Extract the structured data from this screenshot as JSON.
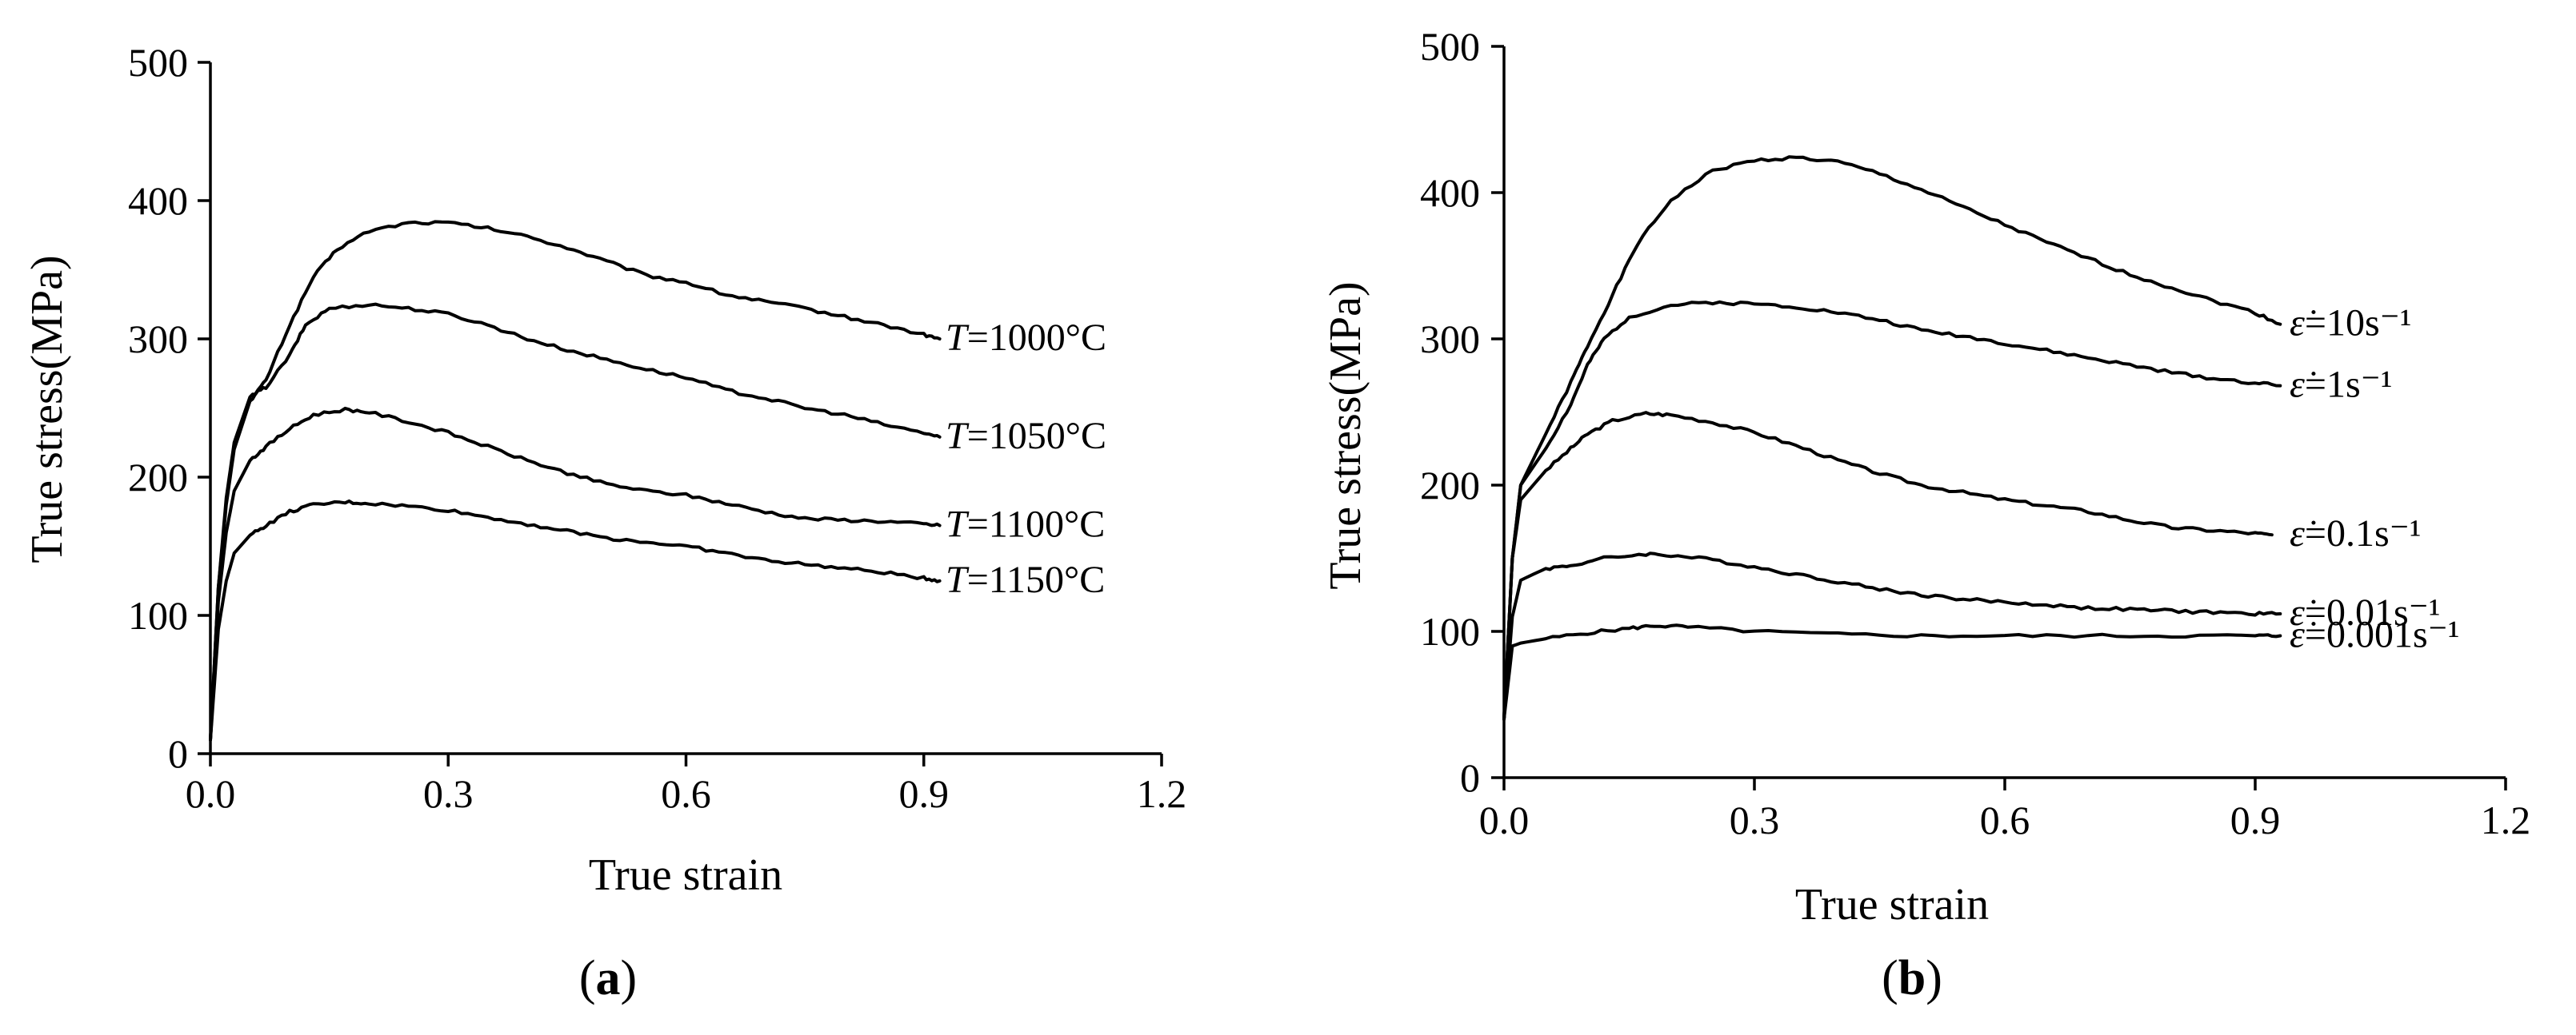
{
  "chart_data": [
    {
      "id": "a",
      "type": "line",
      "xlabel": "True strain",
      "ylabel": "True stress(MPa)",
      "xlim": [
        0,
        1.2
      ],
      "ylim": [
        0,
        500
      ],
      "xticks": [
        "0.0",
        "0.3",
        "0.6",
        "0.9",
        "1.2"
      ],
      "yticks": [
        "0",
        "100",
        "200",
        "300",
        "400",
        "500"
      ],
      "panel_label": {
        "open": "(",
        "letter": "a",
        "close": ")"
      },
      "series": [
        {
          "name": "T=1000°C",
          "label_prefix": "T",
          "label_rest": "=1000°C",
          "points": [
            [
              0,
              10
            ],
            [
              0.01,
              120
            ],
            [
              0.02,
              180
            ],
            [
              0.03,
              220
            ],
            [
              0.05,
              255
            ],
            [
              0.07,
              270
            ],
            [
              0.1,
              310
            ],
            [
              0.13,
              345
            ],
            [
              0.16,
              365
            ],
            [
              0.2,
              378
            ],
            [
              0.25,
              384
            ],
            [
              0.3,
              384
            ],
            [
              0.35,
              380
            ],
            [
              0.4,
              374
            ],
            [
              0.45,
              366
            ],
            [
              0.5,
              356
            ],
            [
              0.55,
              346
            ],
            [
              0.6,
              341
            ],
            [
              0.65,
              332
            ],
            [
              0.7,
              327
            ],
            [
              0.75,
              322
            ],
            [
              0.8,
              316
            ],
            [
              0.85,
              310
            ],
            [
              0.9,
              303
            ],
            [
              0.92,
              300
            ]
          ]
        },
        {
          "name": "T=1050°C",
          "label_prefix": "T",
          "label_rest": "=1050°C",
          "points": [
            [
              0,
              10
            ],
            [
              0.01,
              120
            ],
            [
              0.02,
              185
            ],
            [
              0.03,
              225
            ],
            [
              0.05,
              258
            ],
            [
              0.07,
              265
            ],
            [
              0.1,
              288
            ],
            [
              0.12,
              310
            ],
            [
              0.15,
              322
            ],
            [
              0.2,
              325
            ],
            [
              0.25,
              322
            ],
            [
              0.3,
              318
            ],
            [
              0.35,
              310
            ],
            [
              0.4,
              300
            ],
            [
              0.45,
              292
            ],
            [
              0.5,
              285
            ],
            [
              0.55,
              278
            ],
            [
              0.6,
              272
            ],
            [
              0.65,
              263
            ],
            [
              0.7,
              257
            ],
            [
              0.75,
              250
            ],
            [
              0.8,
              245
            ],
            [
              0.85,
              238
            ],
            [
              0.9,
              232
            ],
            [
              0.92,
              229
            ]
          ]
        },
        {
          "name": "T=1100°C",
          "label_prefix": "T",
          "label_rest": "=1100°C",
          "points": [
            [
              0,
              10
            ],
            [
              0.01,
              110
            ],
            [
              0.02,
              160
            ],
            [
              0.03,
              190
            ],
            [
              0.05,
              212
            ],
            [
              0.07,
              222
            ],
            [
              0.1,
              235
            ],
            [
              0.13,
              245
            ],
            [
              0.17,
              249
            ],
            [
              0.2,
              247
            ],
            [
              0.25,
              240
            ],
            [
              0.3,
              232
            ],
            [
              0.35,
              222
            ],
            [
              0.4,
              212
            ],
            [
              0.45,
              203
            ],
            [
              0.5,
              195
            ],
            [
              0.55,
              190
            ],
            [
              0.6,
              187
            ],
            [
              0.65,
              181
            ],
            [
              0.7,
              175
            ],
            [
              0.75,
              170
            ],
            [
              0.8,
              169
            ],
            [
              0.85,
              168
            ],
            [
              0.9,
              166
            ],
            [
              0.92,
              165
            ]
          ]
        },
        {
          "name": "T=1150°C",
          "label_prefix": "T",
          "label_rest": "=1150°C",
          "points": [
            [
              0,
              10
            ],
            [
              0.01,
              90
            ],
            [
              0.02,
              125
            ],
            [
              0.03,
              145
            ],
            [
              0.05,
              158
            ],
            [
              0.07,
              165
            ],
            [
              0.1,
              175
            ],
            [
              0.13,
              180
            ],
            [
              0.17,
              182
            ],
            [
              0.2,
              181
            ],
            [
              0.25,
              179
            ],
            [
              0.3,
              176
            ],
            [
              0.35,
              171
            ],
            [
              0.4,
              166
            ],
            [
              0.45,
              161
            ],
            [
              0.5,
              156
            ],
            [
              0.55,
              153
            ],
            [
              0.6,
              150
            ],
            [
              0.65,
              145
            ],
            [
              0.7,
              140
            ],
            [
              0.75,
              137
            ],
            [
              0.8,
              134
            ],
            [
              0.85,
              131
            ],
            [
              0.9,
              127
            ],
            [
              0.92,
              125
            ]
          ]
        }
      ]
    },
    {
      "id": "b",
      "type": "line",
      "xlabel": "True strain",
      "ylabel": "True stress(MPa)",
      "xlim": [
        0,
        1.2
      ],
      "ylim": [
        0,
        500
      ],
      "xticks": [
        "0.0",
        "0.3",
        "0.6",
        "0.9",
        "1.2"
      ],
      "yticks": [
        "0",
        "100",
        "200",
        "300",
        "400",
        "500"
      ],
      "panel_label": {
        "open": "(",
        "letter": "b",
        "close": ")"
      },
      "series": [
        {
          "name": "ε̇=10s⁻¹",
          "label_prefix": "ε̇",
          "label_rest": "=10s⁻¹",
          "points": [
            [
              0,
              40
            ],
            [
              0.01,
              150
            ],
            [
              0.02,
              200
            ],
            [
              0.05,
              235
            ],
            [
              0.08,
              270
            ],
            [
              0.1,
              295
            ],
            [
              0.13,
              330
            ],
            [
              0.16,
              365
            ],
            [
              0.2,
              395
            ],
            [
              0.25,
              415
            ],
            [
              0.3,
              422
            ],
            [
              0.35,
              424
            ],
            [
              0.4,
              421
            ],
            [
              0.45,
              413
            ],
            [
              0.5,
              402
            ],
            [
              0.55,
              390
            ],
            [
              0.6,
              378
            ],
            [
              0.65,
              366
            ],
            [
              0.7,
              355
            ],
            [
              0.75,
              344
            ],
            [
              0.8,
              335
            ],
            [
              0.85,
              326
            ],
            [
              0.9,
              318
            ],
            [
              0.93,
              310
            ]
          ]
        },
        {
          "name": "ε̇=1s⁻¹",
          "label_prefix": "ε̇",
          "label_rest": "=1s⁻¹",
          "points": [
            [
              0,
              40
            ],
            [
              0.01,
              150
            ],
            [
              0.02,
              200
            ],
            [
              0.05,
              225
            ],
            [
              0.08,
              255
            ],
            [
              0.1,
              282
            ],
            [
              0.12,
              300
            ],
            [
              0.15,
              315
            ],
            [
              0.2,
              323
            ],
            [
              0.25,
              325
            ],
            [
              0.3,
              324
            ],
            [
              0.35,
              322
            ],
            [
              0.4,
              318
            ],
            [
              0.45,
              313
            ],
            [
              0.5,
              306
            ],
            [
              0.55,
              302
            ],
            [
              0.6,
              297
            ],
            [
              0.65,
              292
            ],
            [
              0.7,
              287
            ],
            [
              0.75,
              282
            ],
            [
              0.8,
              277
            ],
            [
              0.85,
              273
            ],
            [
              0.9,
              270
            ],
            [
              0.93,
              268
            ]
          ]
        },
        {
          "name": "ε̇=0.1s⁻¹",
          "label_prefix": "ε̇",
          "label_rest": "=0.1s⁻¹",
          "points": [
            [
              0,
              40
            ],
            [
              0.01,
              150
            ],
            [
              0.02,
              190
            ],
            [
              0.05,
              210
            ],
            [
              0.08,
              225
            ],
            [
              0.1,
              235
            ],
            [
              0.13,
              244
            ],
            [
              0.17,
              249
            ],
            [
              0.2,
              248
            ],
            [
              0.25,
              243
            ],
            [
              0.3,
              236
            ],
            [
              0.35,
              227
            ],
            [
              0.4,
              217
            ],
            [
              0.45,
              208
            ],
            [
              0.5,
              200
            ],
            [
              0.55,
              195
            ],
            [
              0.6,
              190
            ],
            [
              0.65,
              186
            ],
            [
              0.7,
              182
            ],
            [
              0.75,
              176
            ],
            [
              0.8,
              171
            ],
            [
              0.85,
              169
            ],
            [
              0.9,
              167
            ],
            [
              0.92,
              166
            ]
          ]
        },
        {
          "name": "ε̇=0.01s⁻¹",
          "label_prefix": "ε̇",
          "label_rest": "=0.01s⁻¹",
          "points": [
            [
              0,
              40
            ],
            [
              0.01,
              110
            ],
            [
              0.02,
              135
            ],
            [
              0.05,
              143
            ],
            [
              0.08,
              145
            ],
            [
              0.12,
              150
            ],
            [
              0.17,
              153
            ],
            [
              0.2,
              152
            ],
            [
              0.25,
              149
            ],
            [
              0.3,
              144
            ],
            [
              0.35,
              139
            ],
            [
              0.4,
              134
            ],
            [
              0.45,
              129
            ],
            [
              0.5,
              125
            ],
            [
              0.55,
              122
            ],
            [
              0.6,
              120
            ],
            [
              0.65,
              118
            ],
            [
              0.7,
              116
            ],
            [
              0.75,
              115
            ],
            [
              0.8,
              114
            ],
            [
              0.85,
              113
            ],
            [
              0.9,
              112
            ],
            [
              0.93,
              112
            ]
          ]
        },
        {
          "name": "ε̇=0.001s⁻¹",
          "label_prefix": "ε̇",
          "label_rest": "=0.001s⁻¹",
          "points": [
            [
              0,
              40
            ],
            [
              0.01,
              90
            ],
            [
              0.02,
              92
            ],
            [
              0.05,
              95
            ],
            [
              0.1,
              99
            ],
            [
              0.15,
              102
            ],
            [
              0.18,
              104
            ],
            [
              0.22,
              103
            ],
            [
              0.3,
              100
            ],
            [
              0.4,
              98
            ],
            [
              0.5,
              97
            ],
            [
              0.6,
              97
            ],
            [
              0.7,
              97
            ],
            [
              0.8,
              97
            ],
            [
              0.9,
              97
            ],
            [
              0.93,
              97
            ]
          ]
        }
      ]
    }
  ]
}
